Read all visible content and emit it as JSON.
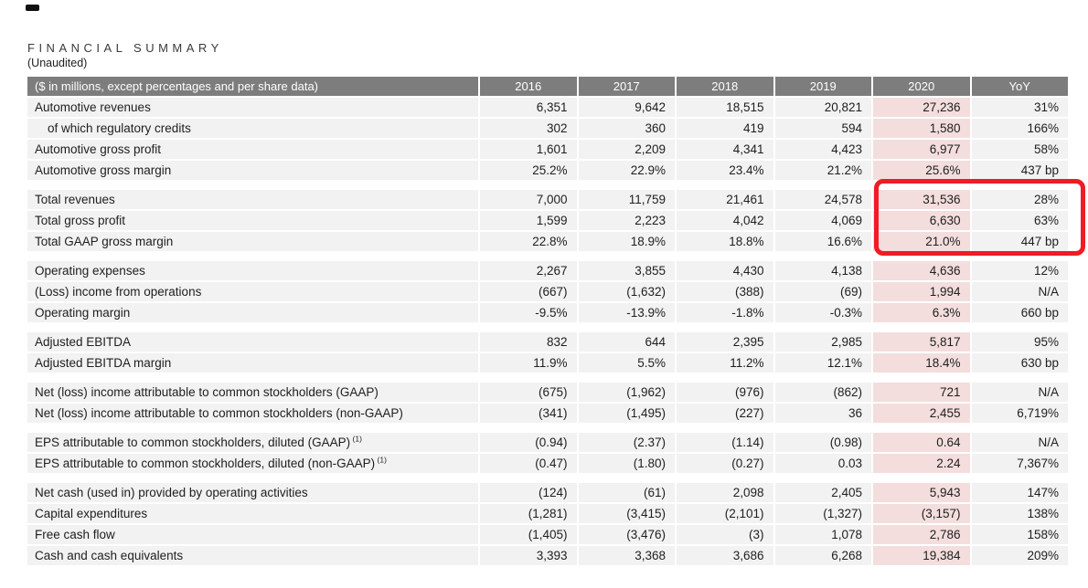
{
  "meta": {
    "heading": "FINANCIAL SUMMARY",
    "subheading": "(Unaudited)"
  },
  "colors": {
    "header_bg": "#7d7d7d",
    "header_text": "#ffffff",
    "row_bg": "#f2f2f2",
    "highlight_column_bg": "#f3dedd",
    "callout_border": "#ee1c24",
    "body_text": "#1e1e1e",
    "page_bg": "#ffffff"
  },
  "table": {
    "header_label": "($ in millions, except percentages and per share data)",
    "year_columns": [
      "2016",
      "2017",
      "2018",
      "2019",
      "2020",
      "YoY"
    ],
    "highlight_column": "2020",
    "highlight_column_index": 4,
    "blocks": [
      {
        "rows": [
          {
            "label": "Automotive revenues",
            "indent": false,
            "sup": "",
            "values": [
              "6,351",
              "9,642",
              "18,515",
              "20,821",
              "27,236",
              "31%"
            ]
          },
          {
            "label": "of which regulatory credits",
            "indent": true,
            "sup": "",
            "values": [
              "302",
              "360",
              "419",
              "594",
              "1,580",
              "166%"
            ]
          },
          {
            "label": "Automotive gross profit",
            "indent": false,
            "sup": "",
            "values": [
              "1,601",
              "2,209",
              "4,341",
              "4,423",
              "6,977",
              "58%"
            ]
          },
          {
            "label": "Automotive gross margin",
            "indent": false,
            "sup": "",
            "values": [
              "25.2%",
              "22.9%",
              "23.4%",
              "21.2%",
              "25.6%",
              "437 bp"
            ]
          }
        ]
      },
      {
        "rows": [
          {
            "label": "Total revenues",
            "indent": false,
            "sup": "",
            "values": [
              "7,000",
              "11,759",
              "21,461",
              "24,578",
              "31,536",
              "28%"
            ]
          },
          {
            "label": "Total gross profit",
            "indent": false,
            "sup": "",
            "values": [
              "1,599",
              "2,223",
              "4,042",
              "4,069",
              "6,630",
              "63%"
            ]
          },
          {
            "label": "Total GAAP gross margin",
            "indent": false,
            "sup": "",
            "values": [
              "22.8%",
              "18.9%",
              "18.8%",
              "16.6%",
              "21.0%",
              "447 bp"
            ]
          }
        ]
      },
      {
        "rows": [
          {
            "label": "Operating expenses",
            "indent": false,
            "sup": "",
            "values": [
              "2,267",
              "3,855",
              "4,430",
              "4,138",
              "4,636",
              "12%"
            ]
          },
          {
            "label": "(Loss) income from operations",
            "indent": false,
            "sup": "",
            "values": [
              "(667)",
              "(1,632)",
              "(388)",
              "(69)",
              "1,994",
              "N/A"
            ]
          },
          {
            "label": "Operating margin",
            "indent": false,
            "sup": "",
            "values": [
              "-9.5%",
              "-13.9%",
              "-1.8%",
              "-0.3%",
              "6.3%",
              "660 bp"
            ]
          }
        ]
      },
      {
        "rows": [
          {
            "label": "Adjusted EBITDA",
            "indent": false,
            "sup": "",
            "values": [
              "832",
              "644",
              "2,395",
              "2,985",
              "5,817",
              "95%"
            ]
          },
          {
            "label": "Adjusted EBITDA margin",
            "indent": false,
            "sup": "",
            "values": [
              "11.9%",
              "5.5%",
              "11.2%",
              "12.1%",
              "18.4%",
              "630 bp"
            ]
          }
        ]
      },
      {
        "rows": [
          {
            "label": "Net (loss) income attributable to common stockholders (GAAP)",
            "indent": false,
            "sup": "",
            "values": [
              "(675)",
              "(1,962)",
              "(976)",
              "(862)",
              "721",
              "N/A"
            ]
          },
          {
            "label": "Net (loss) income attributable to common stockholders (non-GAAP)",
            "indent": false,
            "sup": "",
            "values": [
              "(341)",
              "(1,495)",
              "(227)",
              "36",
              "2,455",
              "6,719%"
            ]
          }
        ]
      },
      {
        "rows": [
          {
            "label": "EPS attributable to common stockholders, diluted (GAAP)",
            "indent": false,
            "sup": "(1)",
            "values": [
              "(0.94)",
              "(2.37)",
              "(1.14)",
              "(0.98)",
              "0.64",
              "N/A"
            ]
          },
          {
            "label": "EPS attributable to common stockholders, diluted (non-GAAP)",
            "indent": false,
            "sup": "(1)",
            "values": [
              "(0.47)",
              "(1.80)",
              "(0.27)",
              "0.03",
              "2.24",
              "7,367%"
            ]
          }
        ]
      },
      {
        "rows": [
          {
            "label": "Net cash (used in) provided by operating activities",
            "indent": false,
            "sup": "",
            "values": [
              "(124)",
              "(61)",
              "2,098",
              "2,405",
              "5,943",
              "147%"
            ]
          },
          {
            "label": "Capital expenditures",
            "indent": false,
            "sup": "",
            "values": [
              "(1,281)",
              "(3,415)",
              "(2,101)",
              "(1,327)",
              "(3,157)",
              "138%"
            ]
          },
          {
            "label": "Free cash flow",
            "indent": false,
            "sup": "",
            "values": [
              "(1,405)",
              "(3,476)",
              "(3)",
              "1,078",
              "2,786",
              "158%"
            ]
          },
          {
            "label": "Cash and cash equivalents",
            "indent": false,
            "sup": "",
            "values": [
              "3,393",
              "3,368",
              "3,686",
              "6,268",
              "19,384",
              "209%"
            ]
          }
        ]
      }
    ],
    "callout": {
      "highlighted_values": [
        "31,536",
        "28%",
        "6,630",
        "63%",
        "21.0%",
        "447 bp"
      ],
      "description": "Red rounded box around 2020 and YoY values of the Total revenues / Total gross profit / Total GAAP gross margin rows"
    }
  }
}
